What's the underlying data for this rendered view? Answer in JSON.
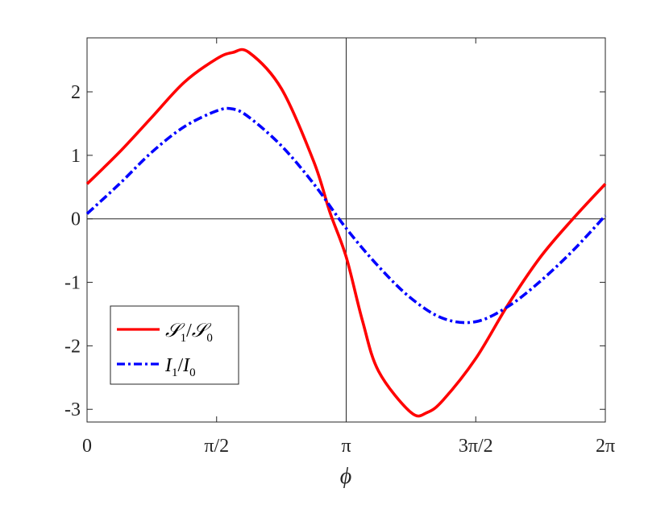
{
  "chart_data": {
    "type": "line",
    "title": "",
    "xlabel": "ϕ",
    "ylabel": "",
    "xlim": [
      0,
      6.2832
    ],
    "ylim": [
      -3.2,
      2.85
    ],
    "grid": false,
    "legend_position": "bottom-left",
    "reference_lines": {
      "horizontal": 0,
      "vertical": 3.1416
    },
    "x_ticks": [
      {
        "value": 0,
        "label": "0"
      },
      {
        "value": 1.5708,
        "label": "π/2"
      },
      {
        "value": 3.1416,
        "label": "π"
      },
      {
        "value": 4.7124,
        "label": "3π/2"
      },
      {
        "value": 6.2832,
        "label": "2π"
      }
    ],
    "y_ticks": [
      {
        "value": 2,
        "label": "2"
      },
      {
        "value": 1,
        "label": "1"
      },
      {
        "value": 0,
        "label": "0"
      },
      {
        "value": -1,
        "label": "-1"
      },
      {
        "value": -2,
        "label": "-2"
      },
      {
        "value": -3,
        "label": "-3"
      }
    ],
    "series": [
      {
        "name": "S1/S0",
        "legend_main": "𝒮",
        "legend_sub": "1",
        "legend_main2": "𝒮",
        "legend_sub2": "0",
        "color": "#ff0000",
        "style": "solid",
        "x": [
          0,
          0.3927,
          0.7854,
          1.1781,
          1.5708,
          1.7671,
          1.9635,
          2.3562,
          2.7489,
          2.9452,
          3.1416,
          3.3379,
          3.5343,
          3.927,
          4.1233,
          4.3197,
          4.7124,
          5.1051,
          5.4978,
          5.8905,
          6.2832
        ],
        "y": [
          0.55,
          1.05,
          1.6,
          2.15,
          2.52,
          2.62,
          2.62,
          2.05,
          0.9,
          0.1,
          -0.6,
          -1.6,
          -2.4,
          -3.05,
          -3.05,
          -2.85,
          -2.2,
          -1.35,
          -0.6,
          0,
          0.55
        ]
      },
      {
        "name": "I1/I0",
        "legend_main": "I",
        "legend_sub": "1",
        "legend_main2": "I",
        "legend_sub2": "0",
        "color": "#0000ff",
        "style": "dashdot",
        "x": [
          0,
          0.3927,
          0.7854,
          1.1781,
          1.5708,
          1.7671,
          1.9635,
          2.3562,
          2.7489,
          3.1416,
          3.5343,
          3.927,
          4.3197,
          4.7124,
          5.1051,
          5.4978,
          5.8905,
          6.2832
        ],
        "y": [
          0.08,
          0.55,
          1.05,
          1.45,
          1.7,
          1.73,
          1.6,
          1.15,
          0.55,
          -0.15,
          -0.75,
          -1.25,
          -1.57,
          -1.62,
          -1.38,
          -0.98,
          -0.5,
          0.05
        ]
      }
    ]
  }
}
